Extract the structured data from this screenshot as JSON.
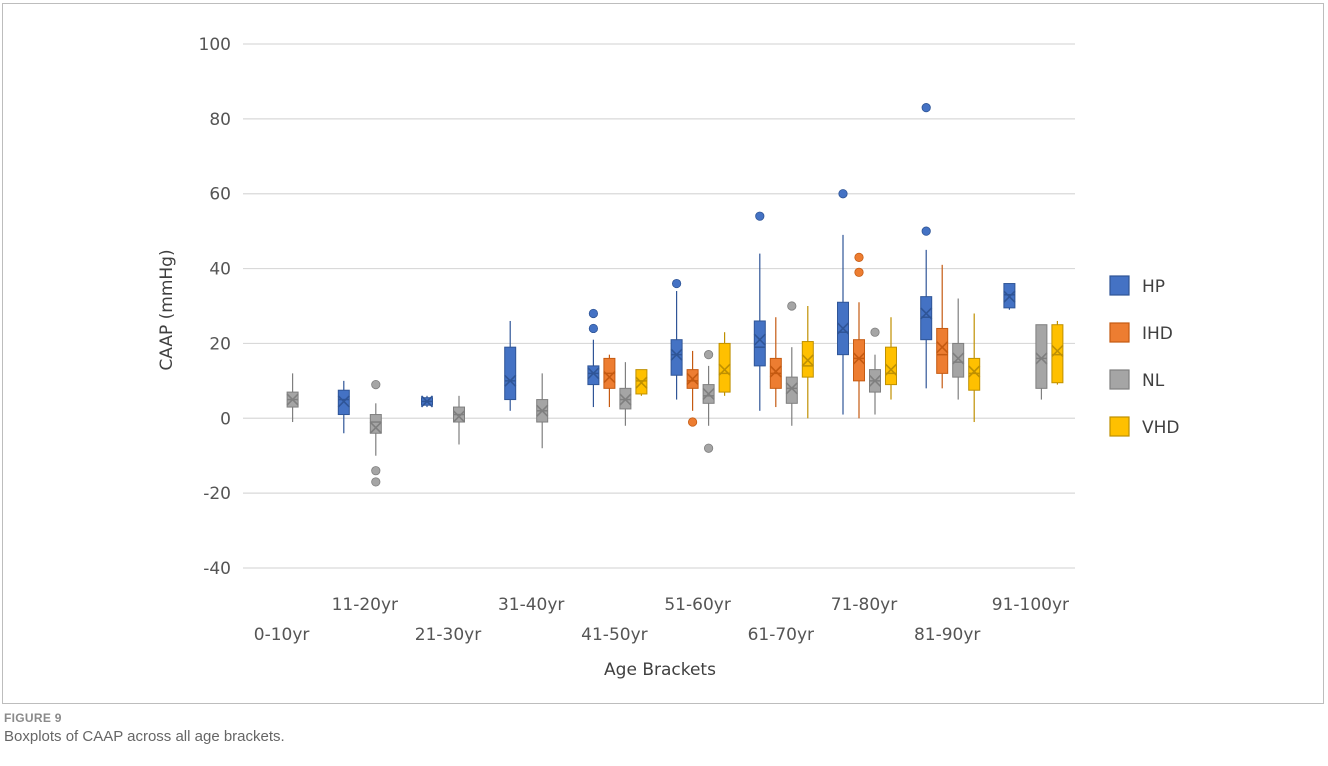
{
  "figure": {
    "label": "FIGURE 9",
    "caption": "Boxplots of CAAP across all age brackets."
  },
  "chart_data": {
    "type": "boxplot",
    "title": "",
    "xlabel": "Age Brackets",
    "ylabel": "CAAP (mmHg)",
    "ylim": [
      -40,
      100
    ],
    "yticks": [
      100,
      80,
      60,
      40,
      20,
      0,
      -20,
      -40
    ],
    "grid": "horizontal",
    "legend_position": "right",
    "categories": [
      "0-10yr",
      "11-20yr",
      "21-30yr",
      "31-40yr",
      "41-50yr",
      "51-60yr",
      "61-70yr",
      "71-80yr",
      "81-90yr",
      "91-100yr"
    ],
    "series": [
      {
        "name": "HP",
        "color": "#4472C4",
        "edge": "#2F5597",
        "boxes": [
          {
            "cat": 1,
            "min": -4,
            "q1": 1,
            "median": 5,
            "q3": 7.5,
            "max": 10,
            "mean": 4.5,
            "outliers": []
          },
          {
            "cat": 2,
            "min": 3,
            "q1": 3.5,
            "median": 4.5,
            "q3": 5.5,
            "max": 6,
            "mean": 4.5,
            "outliers": []
          },
          {
            "cat": 3,
            "min": 2,
            "q1": 5,
            "median": 10,
            "q3": 19,
            "max": 26,
            "mean": 10,
            "outliers": []
          },
          {
            "cat": 4,
            "min": 3,
            "q1": 9,
            "median": 12,
            "q3": 14,
            "max": 21,
            "mean": 12,
            "outliers": [
              24,
              28
            ]
          },
          {
            "cat": 5,
            "min": 5,
            "q1": 11.5,
            "median": 17,
            "q3": 21,
            "max": 34,
            "mean": 17,
            "outliers": [
              36
            ]
          },
          {
            "cat": 6,
            "min": 2,
            "q1": 14,
            "median": 19,
            "q3": 26,
            "max": 44,
            "mean": 21,
            "outliers": [
              54
            ]
          },
          {
            "cat": 7,
            "min": 1,
            "q1": 17,
            "median": 23,
            "q3": 31,
            "max": 49,
            "mean": 24,
            "outliers": [
              60
            ]
          },
          {
            "cat": 8,
            "min": 8,
            "q1": 21,
            "median": 27,
            "q3": 32.5,
            "max": 45,
            "mean": 28,
            "outliers": [
              50,
              83
            ]
          },
          {
            "cat": 9,
            "min": 29,
            "q1": 29.5,
            "median": 33,
            "q3": 36,
            "max": 36,
            "mean": 32.5,
            "outliers": []
          }
        ]
      },
      {
        "name": "IHD",
        "color": "#ED7D31",
        "edge": "#C55A11",
        "boxes": [
          {
            "cat": 4,
            "min": 3,
            "q1": 8,
            "median": 12,
            "q3": 16,
            "max": 17,
            "mean": 11,
            "outliers": []
          },
          {
            "cat": 5,
            "min": 2,
            "q1": 8,
            "median": 10,
            "q3": 13,
            "max": 18,
            "mean": 10.5,
            "outliers": [
              -1
            ]
          },
          {
            "cat": 6,
            "min": 3,
            "q1": 8,
            "median": 12,
            "q3": 16,
            "max": 27,
            "mean": 12.5,
            "outliers": []
          },
          {
            "cat": 7,
            "min": 0,
            "q1": 10,
            "median": 16,
            "q3": 21,
            "max": 31,
            "mean": 16,
            "outliers": [
              39,
              43
            ]
          },
          {
            "cat": 8,
            "min": 8,
            "q1": 12,
            "median": 17,
            "q3": 24,
            "max": 41,
            "mean": 19,
            "outliers": []
          }
        ]
      },
      {
        "name": "NL",
        "color": "#A5A5A5",
        "edge": "#7F7F7F",
        "boxes": [
          {
            "cat": 0,
            "min": -1,
            "q1": 3,
            "median": 5,
            "q3": 7,
            "max": 12,
            "mean": 5,
            "outliers": []
          },
          {
            "cat": 1,
            "min": -10,
            "q1": -4,
            "median": -1,
            "q3": 1,
            "max": 4,
            "mean": -2.5,
            "outliers": [
              9,
              -14,
              -17
            ]
          },
          {
            "cat": 2,
            "min": -7,
            "q1": -1,
            "median": 1,
            "q3": 3,
            "max": 6,
            "mean": 0.5,
            "outliers": []
          },
          {
            "cat": 3,
            "min": -8,
            "q1": -1,
            "median": 2,
            "q3": 5,
            "max": 12,
            "mean": 2,
            "outliers": []
          },
          {
            "cat": 4,
            "min": -2,
            "q1": 2.5,
            "median": 5,
            "q3": 8,
            "max": 15,
            "mean": 5,
            "outliers": []
          },
          {
            "cat": 5,
            "min": -2,
            "q1": 4,
            "median": 6,
            "q3": 9,
            "max": 14,
            "mean": 6.5,
            "outliers": [
              17,
              -8
            ]
          },
          {
            "cat": 6,
            "min": -2,
            "q1": 4,
            "median": 8,
            "q3": 11,
            "max": 19,
            "mean": 8,
            "outliers": [
              30
            ]
          },
          {
            "cat": 7,
            "min": 1,
            "q1": 7,
            "median": 10,
            "q3": 13,
            "max": 17,
            "mean": 10,
            "outliers": [
              23
            ]
          },
          {
            "cat": 8,
            "min": 5,
            "q1": 11,
            "median": 15,
            "q3": 20,
            "max": 32,
            "mean": 16,
            "outliers": []
          },
          {
            "cat": 9,
            "min": 5,
            "q1": 8,
            "median": 16,
            "q3": 25,
            "max": 25,
            "mean": 16,
            "outliers": []
          }
        ]
      },
      {
        "name": "VHD",
        "color": "#FFC000",
        "edge": "#BF9000",
        "boxes": [
          {
            "cat": 4,
            "min": 6,
            "q1": 6.5,
            "median": 10,
            "q3": 13,
            "max": 13,
            "mean": 9.5,
            "outliers": []
          },
          {
            "cat": 5,
            "min": 6,
            "q1": 7,
            "median": 12,
            "q3": 20,
            "max": 23,
            "mean": 13,
            "outliers": []
          },
          {
            "cat": 6,
            "min": 0,
            "q1": 11,
            "median": 14,
            "q3": 20.5,
            "max": 30,
            "mean": 15.5,
            "outliers": []
          },
          {
            "cat": 7,
            "min": 5,
            "q1": 9,
            "median": 12,
            "q3": 19,
            "max": 27,
            "mean": 13,
            "outliers": []
          },
          {
            "cat": 8,
            "min": -1,
            "q1": 7.5,
            "median": 12,
            "q3": 16,
            "max": 28,
            "mean": 12.5,
            "outliers": []
          },
          {
            "cat": 9,
            "min": 9,
            "q1": 9.5,
            "median": 17,
            "q3": 25,
            "max": 26,
            "mean": 18,
            "outliers": []
          }
        ]
      }
    ]
  }
}
